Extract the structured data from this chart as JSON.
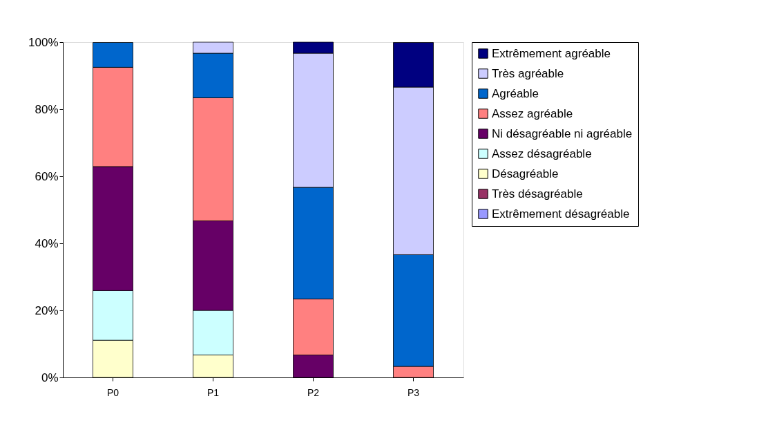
{
  "chart_data": {
    "type": "bar",
    "stacked": true,
    "categories": [
      "P0",
      "P1",
      "P2",
      "P3"
    ],
    "ylim": [
      0,
      100
    ],
    "yticks": [
      {
        "value": 0,
        "label": "0%"
      },
      {
        "value": 20,
        "label": "20%"
      },
      {
        "value": 40,
        "label": "40%"
      },
      {
        "value": 60,
        "label": "60%"
      },
      {
        "value": 80,
        "label": "80%"
      },
      {
        "value": 100,
        "label": "100%"
      }
    ],
    "grid": false,
    "legend": "right",
    "series": [
      {
        "name": "Extrêmement désagréable",
        "color": "#9999ff",
        "values": [
          0,
          0,
          0,
          0
        ]
      },
      {
        "name": "Très désagréable",
        "color": "#993366",
        "values": [
          0,
          0,
          0,
          0
        ]
      },
      {
        "name": " Désagréable",
        "color": "#ffffcc",
        "values": [
          11.1,
          6.7,
          0,
          0
        ]
      },
      {
        "name": " Assez désagréable",
        "color": "#ccffff",
        "values": [
          14.8,
          13.3,
          0,
          0
        ]
      },
      {
        "name": "Ni désagréable ni agréable",
        "color": "#660066",
        "values": [
          37.0,
          26.7,
          6.7,
          0
        ]
      },
      {
        "name": "Assez agréable",
        "color": "#ff8080",
        "values": [
          29.6,
          36.7,
          16.7,
          3.3
        ]
      },
      {
        "name": "Agréable",
        "color": "#0066cc",
        "values": [
          7.4,
          13.3,
          33.3,
          33.3
        ]
      },
      {
        "name": "Très agréable",
        "color": "#ccccff",
        "values": [
          0,
          3.3,
          40.0,
          50.0
        ]
      },
      {
        "name": "Extrêmement agréable",
        "color": "#000080",
        "values": [
          0,
          0,
          3.3,
          13.3
        ]
      }
    ]
  }
}
